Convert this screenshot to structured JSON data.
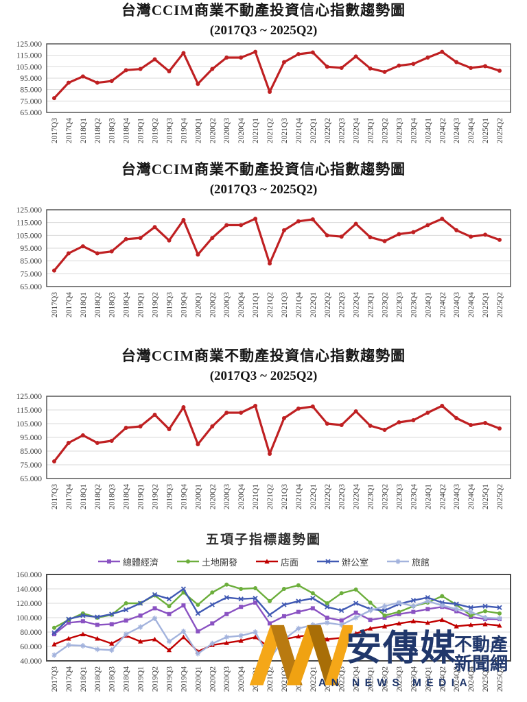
{
  "chart_data": [
    {
      "id": "ccim-index-trend",
      "type": "line",
      "instances": 3,
      "title": "台灣CCIM商業不動產投資信心指數趨勢圖",
      "subtitle": "(2017Q3 ~ 2025Q2)",
      "categories": [
        "2017Q3",
        "2017Q4",
        "2018Q1",
        "2018Q2",
        "2018Q3",
        "2018Q4",
        "2019Q1",
        "2019Q2",
        "2019Q3",
        "2019Q4",
        "2020Q1",
        "2020Q2",
        "2020Q3",
        "2020Q4",
        "2021Q1",
        "2021Q2",
        "2021Q3",
        "2021Q4",
        "2022Q1",
        "2022Q2",
        "2022Q3",
        "2022Q4",
        "2023Q1",
        "2023Q2",
        "2023Q3",
        "2023Q4",
        "2024Q1",
        "2024Q2",
        "2024Q3",
        "2024Q4",
        "2025Q1",
        "2025Q2"
      ],
      "series": [
        {
          "color": "#bf2022",
          "marker": "circle",
          "values": [
            77.5,
            91,
            96.5,
            91,
            92.5,
            102,
            103,
            111.5,
            101,
            117,
            90,
            103,
            113,
            113,
            118,
            83,
            109,
            116,
            117.5,
            105,
            104,
            114,
            103.5,
            100.5,
            106,
            107.5,
            113,
            118,
            109,
            104,
            105.5,
            101.5
          ]
        }
      ],
      "ylim": [
        65,
        125
      ],
      "ytick_labels": [
        "125.000",
        "115.000",
        "105.000",
        "95.000",
        "85.000",
        "75.000",
        "65.000"
      ],
      "grid": true,
      "legend": false
    },
    {
      "id": "five-sub-indices",
      "type": "line",
      "title": "五項子指標趨勢圖",
      "categories": [
        "2017Q3",
        "2017Q4",
        "2018Q1",
        "2018Q2",
        "2018Q3",
        "2018Q4",
        "2019Q1",
        "2019Q2",
        "2019Q3",
        "2019Q4",
        "2020Q1",
        "2020Q2",
        "2020Q3",
        "2020Q4",
        "2021Q1",
        "2021Q2",
        "2021Q3",
        "2021Q4",
        "2022Q1",
        "2022Q2",
        "2022Q3",
        "2022Q4",
        "2023Q1",
        "2023Q2",
        "2023Q3",
        "2023Q4",
        "2024Q1",
        "2024Q2",
        "2024Q3",
        "2024Q4",
        "2025Q1",
        "2025Q2"
      ],
      "series": [
        {
          "name": "總體經濟",
          "color": "#8a52c2",
          "marker": "square",
          "values": [
            77,
            93,
            95,
            90,
            91,
            96,
            103,
            113,
            105,
            117,
            81,
            92,
            105,
            115,
            121,
            92,
            102,
            108,
            113,
            100,
            96,
            107,
            97,
            100,
            105,
            108,
            112,
            115,
            109,
            101,
            98,
            98
          ]
        },
        {
          "name": "土地開發",
          "color": "#6cae3c",
          "marker": "circle",
          "values": [
            86,
            97,
            106,
            100,
            104,
            120,
            120,
            131,
            116,
            135,
            118,
            135,
            146,
            140,
            141,
            123,
            140,
            145,
            134,
            120,
            134,
            139,
            121,
            103,
            108,
            116,
            121,
            130,
            118,
            103,
            109,
            106
          ]
        },
        {
          "name": "店面",
          "color": "#c00000",
          "marker": "triangle",
          "values": [
            63,
            71,
            77,
            71,
            64,
            75,
            67,
            70,
            55,
            73,
            53,
            62,
            65,
            68,
            73,
            58,
            70,
            74,
            76,
            70,
            72,
            78,
            85,
            88,
            92,
            95,
            93,
            97,
            88,
            90,
            91,
            89
          ]
        },
        {
          "name": "辦公室",
          "color": "#4059b3",
          "marker": "x",
          "values": [
            79,
            98,
            103,
            101,
            105,
            111,
            120,
            132,
            126,
            140,
            106,
            118,
            128,
            126,
            127,
            104,
            118,
            123,
            127,
            115,
            110,
            120,
            112,
            110,
            119,
            124,
            128,
            121,
            119,
            114,
            116,
            114
          ]
        },
        {
          "name": "旅館",
          "color": "#a3b3dd",
          "marker": "asterisk",
          "values": [
            48,
            62,
            61,
            56,
            55,
            77,
            87,
            99,
            67,
            81,
            50,
            64,
            73,
            75,
            80,
            43,
            70,
            85,
            90,
            93,
            90,
            100,
            110,
            116,
            121,
            116,
            123,
            117,
            112,
            108,
            100,
            99
          ]
        }
      ],
      "ylim": [
        40,
        160
      ],
      "ytick_labels": [
        "160.000",
        "140.000",
        "120.000",
        "100.000",
        "80.000",
        "60.000",
        "40.000"
      ],
      "grid": true,
      "legend": true,
      "legend_position": "top"
    }
  ],
  "watermark": {
    "logo": "ANN-monogram",
    "logo_colors": [
      "#f5a718",
      "#b97a10"
    ],
    "brand": "安傳媒",
    "tagline_line1": "不動產",
    "tagline_line2": "新聞網",
    "english": "AN NEWS MEDIA",
    "text_color": "#20376b"
  }
}
